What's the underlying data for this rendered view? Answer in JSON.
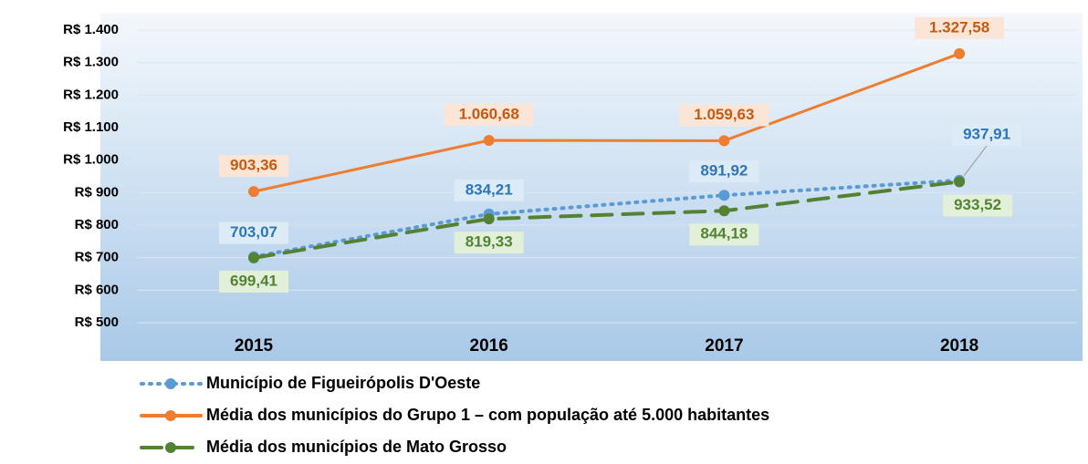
{
  "chart_data": {
    "type": "line",
    "categories": [
      "2015",
      "2016",
      "2017",
      "2018"
    ],
    "ylim": [
      500,
      1400
    ],
    "yticks": [
      {
        "value": 500,
        "label": "R$ 500"
      },
      {
        "value": 600,
        "label": "R$ 600"
      },
      {
        "value": 700,
        "label": "R$ 700"
      },
      {
        "value": 800,
        "label": "R$ 800"
      },
      {
        "value": 900,
        "label": "R$ 900"
      },
      {
        "value": 1000,
        "label": "R$ 1.000"
      },
      {
        "value": 1100,
        "label": "R$ 1.100"
      },
      {
        "value": 1200,
        "label": "R$ 1.200"
      },
      {
        "value": 1300,
        "label": "R$ 1.300"
      },
      {
        "value": 1400,
        "label": "R$ 1.400"
      }
    ],
    "grid": true,
    "legend": "bottom",
    "series": [
      {
        "name": "Município de Figueirópolis D'Oeste",
        "color": "#5b9bd5",
        "style": "dotted",
        "values": [
          703.07,
          834.21,
          891.92,
          937.91
        ],
        "value_labels": [
          "703,07",
          "834,21",
          "891,92",
          "937,91"
        ]
      },
      {
        "name": "Média dos municípios do Grupo 1 – com população até 5.000 habitantes",
        "color": "#ed7d31",
        "style": "solid",
        "values": [
          903.36,
          1060.68,
          1059.63,
          1327.58
        ],
        "value_labels": [
          "903,36",
          "1.060,68",
          "1.059,63",
          "1.327,58"
        ]
      },
      {
        "name": "Média dos municípios de Mato Grosso",
        "color": "#548235",
        "style": "dashed",
        "values": [
          699.41,
          819.33,
          844.18,
          933.52
        ],
        "value_labels": [
          "699,41",
          "819,33",
          "844,18",
          "933,52"
        ]
      }
    ]
  }
}
